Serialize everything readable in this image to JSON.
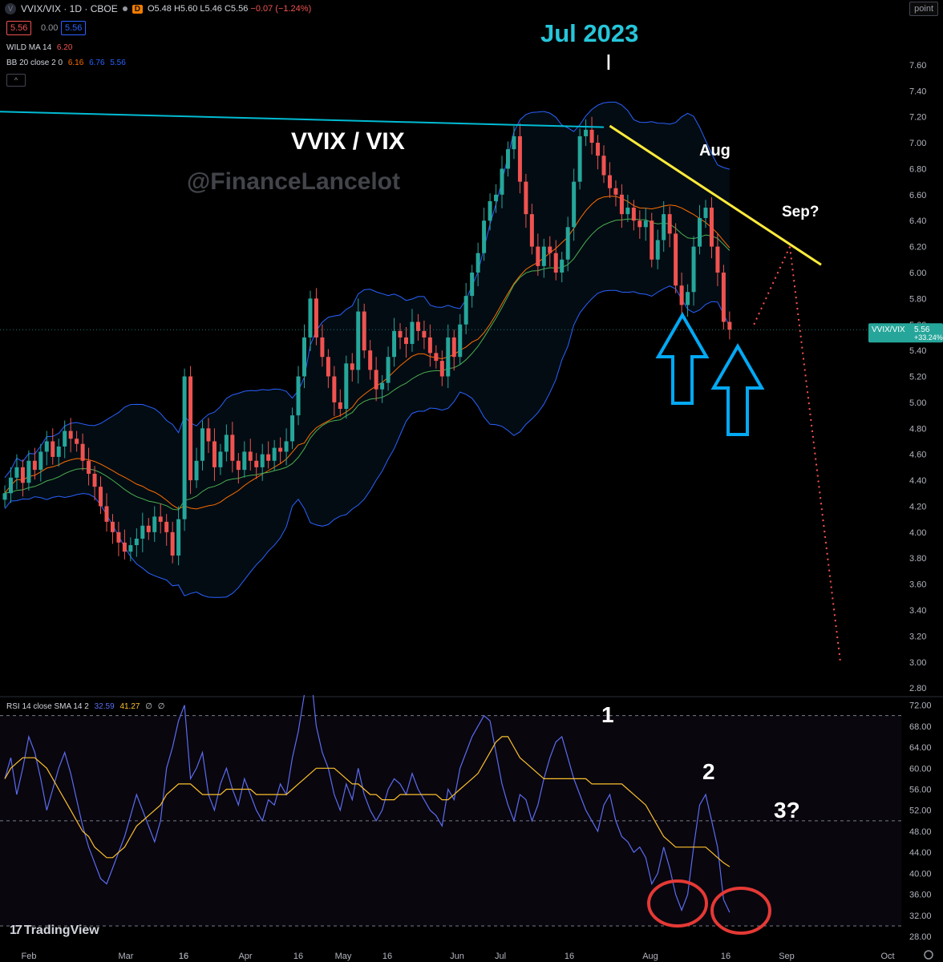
{
  "header": {
    "symbol_line": "VVIX/VIX · 1D · CBOE",
    "badge": "D",
    "ohlc": {
      "open": "O5.48",
      "high": "H5.60",
      "low": "L5.46",
      "close": "C5.56",
      "change": "−0.07 (−1.24%)"
    },
    "sell_price": "5.56",
    "spread": "0.00",
    "buy_price": "5.56",
    "wild_ma_label": "WILD MA 14",
    "wild_ma_value": "6.20",
    "bb_label": "BB 20 close 2 0",
    "bb_basis": "6.16",
    "bb_upper": "6.76",
    "bb_lower": "5.56",
    "point_button": "point"
  },
  "rsi_legend": {
    "label": "RSI 14 close SMA 14 2",
    "rsi": "32.59",
    "sma": "41.27",
    "na1": "∅",
    "na2": "∅"
  },
  "price_tag": {
    "label": "VVIX/VIX",
    "value": "5.56",
    "change": "+33.24%"
  },
  "annotations": {
    "title": "VVIX / VIX",
    "watermark": "@FinanceLancelot",
    "jul": "Jul 2023",
    "tick": "I",
    "aug": "Aug",
    "sep": "Sep?",
    "rsi1": "1",
    "rsi2": "2",
    "rsi3": "3?"
  },
  "branding": "TradingView",
  "colors": {
    "up": "#26a69a",
    "down": "#ef5350",
    "bb_band": "#2962ff",
    "basis": "#ff6d00",
    "wild_ma": "#4caf50",
    "resistance": "#00bcd4",
    "trend": "#ffeb3b",
    "arrow": "#03a9f4",
    "circle": "#ff1744",
    "rsi": "#5b6cf0",
    "rsi_sma": "#fbc02d",
    "projection": "#ff5252"
  },
  "chart_data": [
    {
      "type": "candlestick",
      "title": "VVIX/VIX · 1D · CBOE",
      "x_ticks": [
        "Feb",
        "16",
        "Mar",
        "16",
        "Apr",
        "16",
        "May",
        "16",
        "Jun",
        "16",
        "Jul",
        "16",
        "Aug",
        "16",
        "Sep",
        "Oct"
      ],
      "y_ticks": [
        "2.80",
        "3.00",
        "3.20",
        "3.40",
        "3.60",
        "3.80",
        "4.00",
        "4.20",
        "4.40",
        "4.60",
        "4.80",
        "5.00",
        "5.20",
        "5.40",
        "5.60",
        "5.80",
        "6.00",
        "6.20",
        "6.40",
        "6.60",
        "6.80",
        "7.00",
        "7.20",
        "7.40",
        "7.60"
      ],
      "ylim": [
        2.77,
        7.76
      ],
      "closes": [
        4.3,
        4.42,
        4.5,
        4.38,
        4.55,
        4.48,
        4.62,
        4.7,
        4.58,
        4.66,
        4.78,
        4.72,
        4.68,
        4.55,
        4.45,
        4.35,
        4.2,
        4.08,
        4.0,
        3.92,
        3.85,
        3.9,
        3.95,
        4.05,
        4.0,
        4.12,
        4.08,
        4.0,
        3.82,
        4.1,
        5.2,
        4.4,
        4.55,
        4.8,
        4.7,
        4.5,
        4.62,
        4.75,
        4.55,
        4.48,
        4.62,
        4.55,
        4.5,
        4.6,
        4.55,
        4.65,
        4.62,
        4.7,
        4.9,
        5.2,
        5.5,
        5.8,
        5.5,
        5.35,
        5.2,
        5.0,
        4.95,
        5.3,
        5.25,
        5.7,
        5.4,
        5.25,
        5.1,
        5.15,
        5.35,
        5.55,
        5.5,
        5.45,
        5.62,
        5.55,
        5.5,
        5.38,
        5.32,
        5.2,
        5.5,
        5.35,
        5.6,
        5.82,
        6.0,
        6.15,
        6.4,
        6.55,
        6.6,
        6.8,
        6.95,
        7.05,
        6.7,
        6.45,
        6.2,
        6.05,
        6.2,
        6.15,
        6.0,
        6.1,
        6.35,
        6.7,
        7.05,
        7.1,
        7.0,
        6.9,
        6.75,
        6.65,
        6.6,
        6.45,
        6.5,
        6.4,
        6.35,
        6.4,
        6.1,
        6.25,
        6.45,
        6.3,
        5.9,
        5.75,
        5.85,
        6.2,
        6.42,
        6.5,
        6.2,
        6.0,
        5.62,
        5.56
      ],
      "series": [
        {
          "name": "WILD MA 14",
          "last_value": 6.2
        },
        {
          "name": "BB 20 basis",
          "last_value": 6.16
        },
        {
          "name": "BB 20 upper",
          "last_value": 6.76
        },
        {
          "name": "BB 20 lower",
          "last_value": 5.56
        }
      ],
      "annotations": [
        "VVIX / VIX",
        "Jul 2023",
        "Aug",
        "Sep?"
      ]
    },
    {
      "type": "line",
      "title": "RSI 14 close SMA 14 2",
      "y_ticks": [
        "28.00",
        "32.00",
        "36.00",
        "40.00",
        "44.00",
        "48.00",
        "52.00",
        "56.00",
        "60.00",
        "64.00",
        "68.00",
        "72.00"
      ],
      "ylim": [
        26.5,
        73
      ],
      "series": [
        {
          "name": "RSI 14",
          "last_value": 32.59,
          "values": [
            58,
            62,
            55,
            60,
            66,
            63,
            58,
            52,
            56,
            60,
            63,
            59,
            54,
            49,
            45,
            42,
            39,
            38,
            41,
            44,
            47,
            51,
            55,
            52,
            49,
            46,
            50,
            60,
            64,
            69,
            72,
            58,
            60,
            63,
            55,
            52,
            57,
            60,
            56,
            53,
            58,
            55,
            52,
            50,
            54,
            53,
            57,
            55,
            62,
            67,
            74,
            79,
            68,
            63,
            60,
            55,
            52,
            57,
            54,
            60,
            55,
            52,
            50,
            52,
            56,
            58,
            57,
            55,
            59,
            56,
            54,
            52,
            51,
            49,
            56,
            54,
            60,
            63,
            66,
            68,
            70,
            69,
            63,
            57,
            53,
            50,
            55,
            54,
            50,
            53,
            58,
            62,
            65,
            66,
            62,
            58,
            55,
            52,
            50,
            48,
            53,
            55,
            50,
            47,
            46,
            44,
            45,
            43,
            38,
            40,
            45,
            41,
            36,
            33,
            36,
            45,
            53,
            55,
            50,
            45,
            35,
            32.59
          ]
        },
        {
          "name": "SMA 14",
          "last_value": 41.27,
          "values": [
            58,
            60,
            61,
            62,
            62,
            62,
            61,
            60,
            58,
            56,
            54,
            52,
            50,
            48,
            47,
            45,
            44,
            43,
            43,
            44,
            45,
            47,
            49,
            50,
            51,
            52,
            53,
            55,
            56,
            57,
            57,
            57,
            56,
            55,
            55,
            55,
            55,
            56,
            56,
            56,
            56,
            56,
            55,
            55,
            55,
            55,
            55,
            55,
            56,
            57,
            58,
            59,
            60,
            60,
            60,
            60,
            59,
            58,
            57,
            57,
            56,
            55,
            55,
            54,
            54,
            54,
            55,
            55,
            55,
            55,
            55,
            55,
            55,
            54,
            54,
            55,
            56,
            57,
            58,
            59,
            61,
            63,
            65,
            66,
            66,
            64,
            62,
            61,
            60,
            59,
            58,
            58,
            58,
            58,
            58,
            58,
            58,
            58,
            57,
            57,
            57,
            57,
            57,
            57,
            56,
            55,
            54,
            53,
            51,
            49,
            47,
            46,
            45,
            45,
            45,
            45,
            45,
            45,
            44,
            43,
            42,
            41.27
          ]
        }
      ]
    }
  ]
}
